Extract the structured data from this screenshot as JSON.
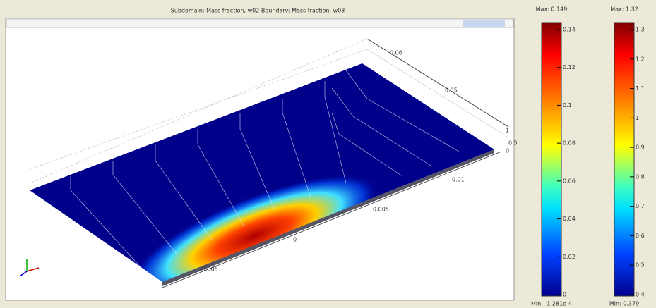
{
  "window": {
    "title": "Subdomain: Mass fraction, w02  Boundary: Mass fraction, w03"
  },
  "plot": {
    "axis_labels": [
      "0.06",
      "0.05",
      "0.01",
      "0.005",
      "0",
      "-0.005",
      "1",
      "0.5",
      "0"
    ]
  },
  "legends": [
    {
      "max": "Max: 0.149",
      "ticks": [
        "0.14",
        "0.12",
        "0.1",
        "0.08",
        "0.06",
        "0.04",
        "0.02",
        "0"
      ],
      "min": "Min: -1.281e-4"
    },
    {
      "max": "Max: 1.32",
      "ticks": [
        "1.3",
        "1.2",
        "1.1",
        "1",
        "0.9",
        "0.8",
        "0.7",
        "0.6",
        "0.5",
        "0.4"
      ],
      "min": "Min: 0.379"
    }
  ]
}
